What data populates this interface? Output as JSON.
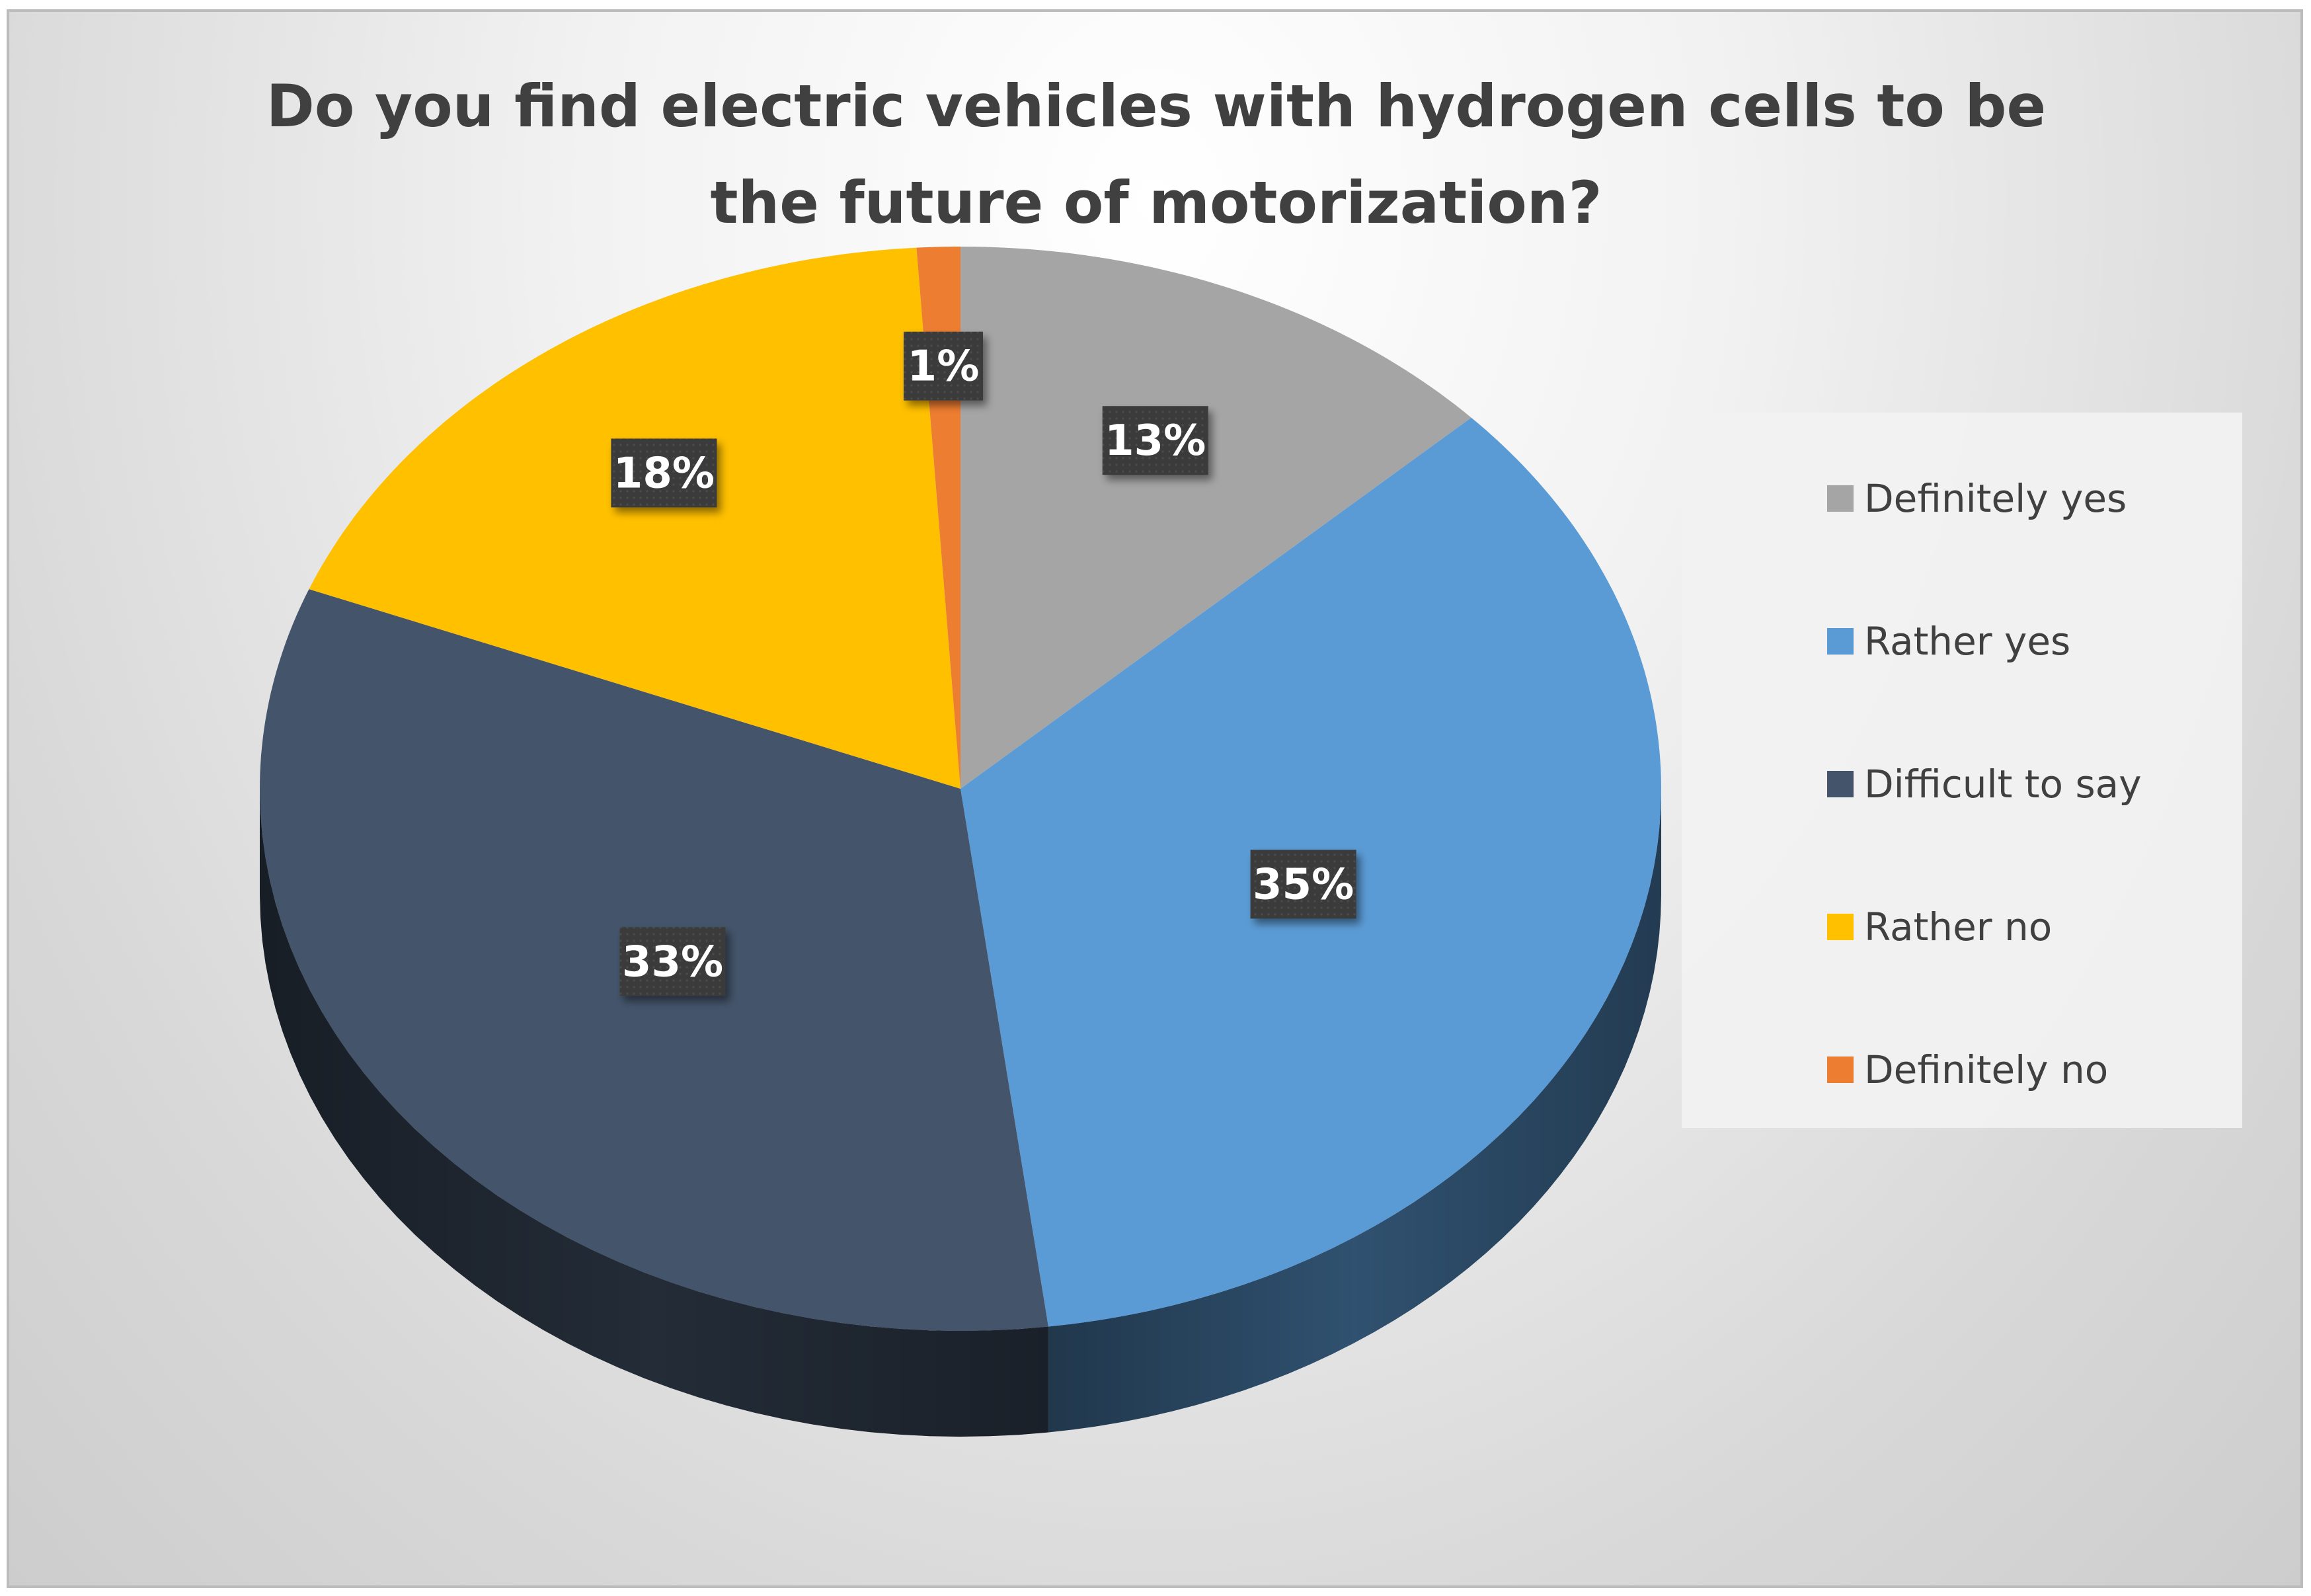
{
  "chart_data": {
    "type": "pie",
    "title": "Do you find electric vehicles with hydrogen cells to be the future of motorization?",
    "categories": [
      "Definitely yes",
      "Rather yes",
      "Difficult to say",
      "Rather no",
      "Definitely no"
    ],
    "values": [
      13,
      35,
      33,
      18,
      1
    ],
    "value_labels": [
      "13%",
      "35%",
      "33%",
      "18%",
      "1%"
    ],
    "colors": [
      "#A5A5A5",
      "#5B9BD5",
      "#44546A",
      "#FFC000",
      "#ED7D31"
    ],
    "legend_position": "right",
    "style": "3d-pie"
  }
}
